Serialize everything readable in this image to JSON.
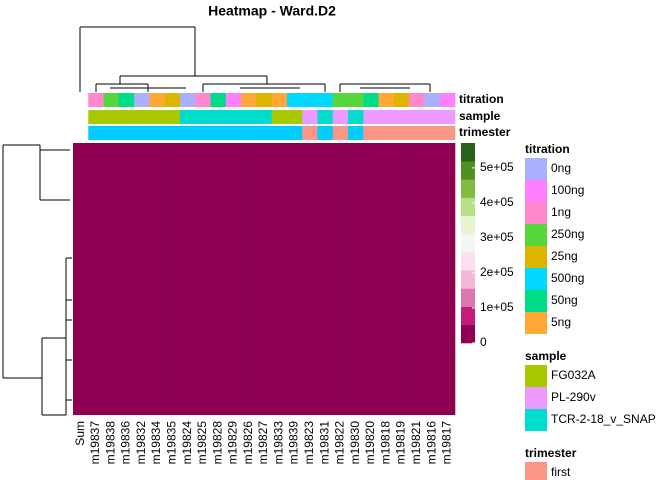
{
  "chart_data": {
    "type": "heatmap",
    "title": "Heatmap - Ward.D2",
    "columns": [
      "Sum",
      "m19837",
      "m19838",
      "m19836",
      "m19832",
      "m19834",
      "m19835",
      "m19824",
      "m19825",
      "m19828",
      "m19829",
      "m19826",
      "m19827",
      "m19833",
      "m19839",
      "m19823",
      "m19831",
      "m19822",
      "m19830",
      "m19820",
      "m19818",
      "m19819",
      "m19821",
      "m19816",
      "m19817"
    ],
    "values": [
      0,
      0,
      0,
      0,
      0,
      0,
      0,
      0,
      0,
      0,
      0,
      0,
      0,
      0,
      0,
      0,
      0,
      0,
      0,
      0,
      0,
      0,
      0,
      0,
      0
    ],
    "colorlim": [
      0,
      571000
    ],
    "colorticks": [
      0,
      {
        "value": 100000,
        "label": "1e+05"
      },
      {
        "value": 200000,
        "label": "2e+05"
      },
      {
        "value": 300000,
        "label": "3e+05"
      },
      {
        "value": 400000,
        "label": "4e+05"
      },
      {
        "value": 500000,
        "label": "5e+05"
      }
    ],
    "colors": [
      "#8e0152",
      "#c51b7d",
      "#de77ae",
      "#f1b6da",
      "#fde0ef",
      "#f4f6f0",
      "#e6f5d0",
      "#b8e186",
      "#7fbc41",
      "#4d9221",
      "#276419"
    ],
    "annotations": [
      {
        "name": "titration",
        "colors": [
          null,
          "#ff88cc",
          "#55d63a",
          "#00dd88",
          "#aab0ff",
          "#ffa833",
          "#ddb400",
          "#aab0ff",
          "#ff88cc",
          "#00dd88",
          "#ff80ff",
          "#ffa833",
          "#ddb400",
          "#ffa833",
          "#00d8ff",
          "#00d8ff",
          "#00d8ff",
          "#55d63a",
          "#55d63a",
          "#00dd88",
          "#ffa833",
          "#ddb400",
          "#ff88cc",
          "#aab0ff",
          "#ff80ff"
        ],
        "legend": [
          {
            "name": "0ng",
            "color": "#aab0ff"
          },
          {
            "name": "100ng",
            "color": "#ff80ff"
          },
          {
            "name": "1ng",
            "color": "#ff88cc"
          },
          {
            "name": "250ng",
            "color": "#55d63a"
          },
          {
            "name": "25ng",
            "color": "#ddb400"
          },
          {
            "name": "500ng",
            "color": "#00d8ff"
          },
          {
            "name": "50ng",
            "color": "#00dd88"
          },
          {
            "name": "5ng",
            "color": "#ffa833"
          }
        ]
      },
      {
        "name": "sample",
        "colors": [
          null,
          "#a8c800",
          "#a8c800",
          "#a8c800",
          "#a8c800",
          "#a8c800",
          "#a8c800",
          "#00ddcc",
          "#00ddcc",
          "#00ddcc",
          "#00ddcc",
          "#00ddcc",
          "#00ddcc",
          "#a8c800",
          "#a8c800",
          "#ee99ff",
          "#00ddcc",
          "#ee99ff",
          "#00ddcc",
          "#ee99ff",
          "#ee99ff",
          "#ee99ff",
          "#ee99ff",
          "#ee99ff",
          "#ee99ff"
        ],
        "legend": [
          {
            "name": "FG032A",
            "color": "#a8c800"
          },
          {
            "name": "PL-290v",
            "color": "#ee99ff"
          },
          {
            "name": "TCR-2-18_v_SNAP",
            "color": "#00ddcc"
          }
        ]
      },
      {
        "name": "trimester",
        "colors": [
          null,
          "#00ccff",
          "#00ccff",
          "#00ccff",
          "#00ccff",
          "#00ccff",
          "#00ccff",
          "#00ccff",
          "#00ccff",
          "#00ccff",
          "#00ccff",
          "#00ccff",
          "#00ccff",
          "#00ccff",
          "#00ccff",
          "#fa9688",
          "#00ccff",
          "#fa9688",
          "#00ccff",
          "#fa9688",
          "#fa9688",
          "#fa9688",
          "#fa9688",
          "#fa9688",
          "#fa9688"
        ],
        "legend": [
          {
            "name": "first",
            "color": "#fa9688"
          }
        ]
      }
    ]
  }
}
